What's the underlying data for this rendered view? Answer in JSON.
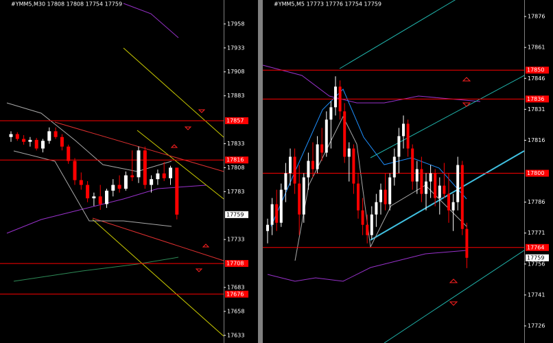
{
  "chart_data": [
    {
      "type": "candlestick",
      "title": "#YMM5,M30  17808 17808 17754 17759",
      "up_color": "#ffffff",
      "down_color": "#ff0000",
      "level_color": "#ff0000",
      "ylim": [
        17625,
        17983
      ],
      "yticks": [
        17633,
        17658,
        17683,
        17733,
        17783,
        17808,
        17833,
        17883,
        17908,
        17933,
        17958
      ],
      "levels": [
        17857,
        17816,
        17708,
        17676
      ],
      "last": 17759,
      "open": [
        17840,
        17843,
        17838,
        17835,
        17837,
        17828,
        17836,
        17846,
        17840,
        17830,
        17815,
        17795,
        17790,
        17776,
        17778,
        17770,
        17784,
        17790,
        17786,
        17800,
        17798,
        17826,
        17790,
        17796,
        17802,
        17797,
        17808
      ],
      "high": [
        17846,
        17845,
        17842,
        17840,
        17839,
        17838,
        17850,
        17850,
        17843,
        17832,
        17818,
        17803,
        17794,
        17782,
        17790,
        17786,
        17796,
        17800,
        17804,
        17826,
        17830,
        17830,
        17800,
        17806,
        17814,
        17810,
        17808
      ],
      "low": [
        17835,
        17836,
        17832,
        17830,
        17826,
        17824,
        17833,
        17838,
        17826,
        17812,
        17790,
        17785,
        17772,
        17768,
        17764,
        17766,
        17778,
        17782,
        17784,
        17794,
        17792,
        17786,
        17782,
        17790,
        17794,
        17790,
        17754
      ],
      "close": [
        17843,
        17838,
        17835,
        17837,
        17828,
        17836,
        17846,
        17840,
        17830,
        17815,
        17795,
        17790,
        17776,
        17778,
        17770,
        17784,
        17790,
        17786,
        17800,
        17798,
        17826,
        17790,
        17796,
        17802,
        17797,
        17808,
        17759
      ]
    },
    {
      "type": "candlestick",
      "title": "#YMM5,M5  17773 17776 17754 17759",
      "up_color": "#ffffff",
      "down_color": "#ff0000",
      "level_color": "#ff0000",
      "ylim": [
        17717.7,
        17884
      ],
      "yticks": [
        17726,
        17741,
        17756,
        17771,
        17786,
        17816,
        17831,
        17846,
        17861,
        17876
      ],
      "levels": [
        17850,
        17836,
        17800,
        17764
      ],
      "last": 17759,
      "open": [
        17772,
        17775,
        17785,
        17776,
        17792,
        17800,
        17808,
        17795,
        17780,
        17798,
        17806,
        17802,
        17814,
        17810,
        17826,
        17832,
        17842,
        17830,
        17808,
        17812,
        17795,
        17782,
        17775,
        17770,
        17780,
        17786,
        17792,
        17785,
        17798,
        17808,
        17818,
        17824,
        17812,
        17796,
        17802,
        17790,
        17796,
        17800,
        17788,
        17794,
        17790,
        17782,
        17786,
        17804,
        17773
      ],
      "high": [
        17778,
        17788,
        17792,
        17795,
        17805,
        17812,
        17812,
        17804,
        17800,
        17810,
        17815,
        17818,
        17822,
        17830,
        17835,
        17847,
        17845,
        17834,
        17815,
        17814,
        17800,
        17788,
        17780,
        17784,
        17790,
        17795,
        17800,
        17800,
        17812,
        17822,
        17828,
        17826,
        17814,
        17806,
        17808,
        17800,
        17804,
        17802,
        17798,
        17805,
        17800,
        17790,
        17808,
        17806,
        17776
      ],
      "low": [
        17766,
        17770,
        17772,
        17774,
        17786,
        17794,
        17790,
        17770,
        17776,
        17792,
        17798,
        17800,
        17806,
        17808,
        17812,
        17828,
        17826,
        17805,
        17796,
        17790,
        17778,
        17770,
        17766,
        17768,
        17774,
        17780,
        17782,
        17782,
        17794,
        17800,
        17812,
        17808,
        17792,
        17790,
        17786,
        17782,
        17788,
        17784,
        17780,
        17788,
        17776,
        17772,
        17782,
        17770,
        17754
      ],
      "close": [
        17775,
        17785,
        17776,
        17792,
        17800,
        17808,
        17795,
        17780,
        17798,
        17806,
        17802,
        17814,
        17810,
        17826,
        17832,
        17842,
        17830,
        17808,
        17812,
        17795,
        17782,
        17775,
        17770,
        17780,
        17786,
        17792,
        17785,
        17798,
        17808,
        17818,
        17824,
        17812,
        17796,
        17802,
        17790,
        17796,
        17800,
        17788,
        17794,
        17790,
        17782,
        17786,
        17804,
        17773,
        17759
      ]
    }
  ]
}
